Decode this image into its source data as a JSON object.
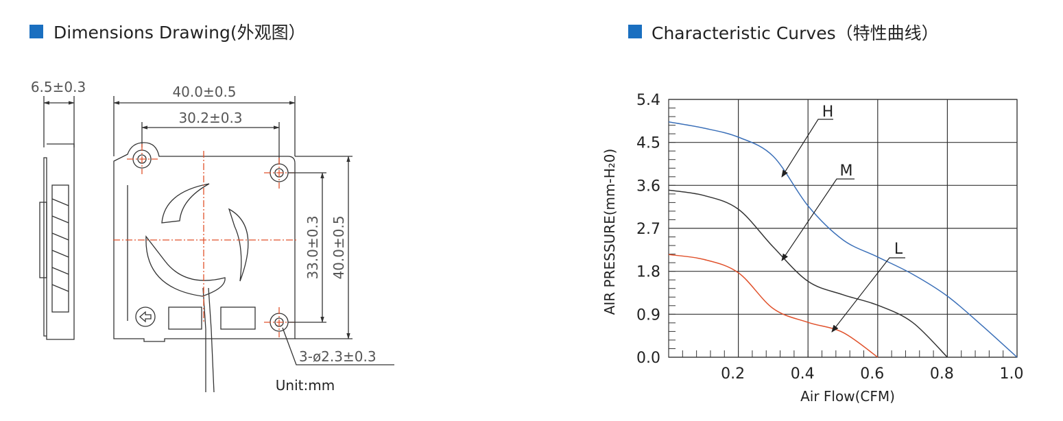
{
  "drawing": {
    "title": "Dimensions Drawing(外观图）",
    "labels": [
      "6.5±0.3",
      "40.0±0.5",
      "30.2±0.3",
      "33.0±0.3",
      "40.0±0.5",
      "3-ø2.3±0.3",
      "Unit:mm"
    ]
  },
  "chart_data": {
    "type": "line",
    "title": "Characteristic Curves（特性曲线）",
    "x_label": "Air Flow(CFM)",
    "y_label": "AIR PRESSURE(mm-H₂0)",
    "x": [
      0,
      0.1,
      0.2,
      0.3,
      0.4,
      0.5,
      0.6,
      0.7,
      0.8,
      0.9,
      1.0
    ],
    "series": [
      {
        "name": "H",
        "color": "#3a6fb8",
        "values": [
          4.93,
          4.8,
          4.61,
          4.21,
          3.17,
          2.46,
          2.1,
          1.74,
          1.28,
          0.66,
          0
        ]
      },
      {
        "name": "M",
        "color": "#333333",
        "values": [
          3.5,
          3.39,
          3.1,
          2.31,
          1.59,
          1.31,
          1.09,
          0.73,
          0,
          null,
          null
        ]
      },
      {
        "name": "L",
        "color": "#e0502a",
        "values": [
          2.15,
          2.05,
          1.77,
          1.02,
          0.73,
          0.52,
          0,
          null,
          null,
          null,
          null
        ]
      }
    ],
    "xlim": [
      0,
      1.0
    ],
    "xticks": [
      0.2,
      0.4,
      0.6,
      0.8,
      {
        "value": 1,
        "label": "1.0"
      }
    ],
    "ylim": [
      0,
      5.4
    ],
    "yticks": [
      {
        "value": 0,
        "label": "0.0"
      },
      0.9,
      1.8,
      2.7,
      3.6,
      4.5,
      5.4
    ],
    "grid": true
  }
}
